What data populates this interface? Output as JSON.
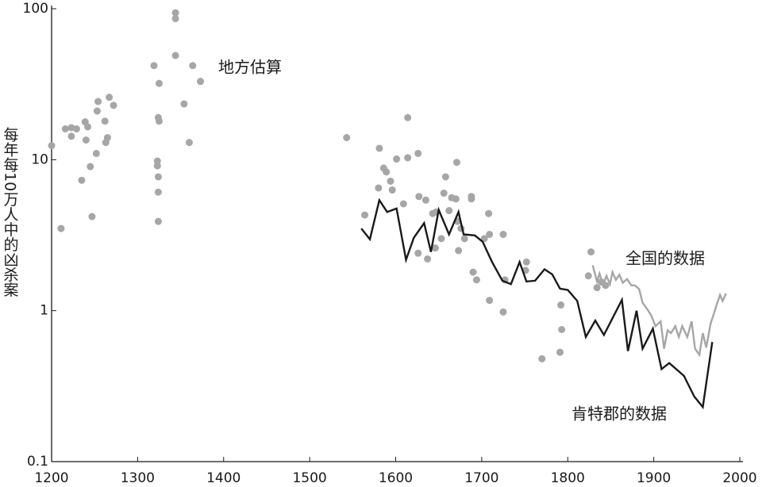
{
  "chart_data": {
    "type": "line",
    "y_label": "每年每10万人中的凶杀案",
    "xlim": [
      1200,
      2000
    ],
    "xticks": [
      1200,
      1300,
      1400,
      1500,
      1600,
      1700,
      1800,
      1900,
      2000
    ],
    "ylim": [
      0.1,
      100
    ],
    "yticks": [
      0.1,
      1,
      10,
      100
    ],
    "yscale": "log",
    "grid": false,
    "series": [
      {
        "name": "地方估算",
        "mode": "markers",
        "color": "#a6a6a6",
        "x": [
          1200,
          1211,
          1216,
          1223,
          1229,
          1223,
          1235,
          1239,
          1240,
          1242,
          1245,
          1247,
          1253,
          1254,
          1252,
          1262,
          1263,
          1265,
          1267,
          1272,
          1319,
          1325,
          1325,
          1324,
          1323,
          1323,
          1324,
          1324,
          1324,
          1344,
          1344,
          1344,
          1354,
          1360,
          1364,
          1373,
          1543,
          1564,
          1581,
          1586,
          1580,
          1589,
          1594,
          1596,
          1601,
          1609,
          1614,
          1614,
          1626,
          1627,
          1635,
          1626,
          1637,
          1643,
          1647,
          1646,
          1653,
          1656,
          1658,
          1662,
          1665,
          1670,
          1671,
          1672,
          1673,
          1676,
          1680,
          1688,
          1688,
          1690,
          1694,
          1703,
          1708,
          1709,
          1709,
          1725,
          1727,
          1725,
          1752,
          1751,
          1770,
          1792,
          1793,
          1791,
          1827,
          1824,
          1834,
          1839,
          1844
        ],
        "values": [
          12.4,
          3.5,
          16,
          16.3,
          16,
          14.3,
          7.3,
          17.8,
          13.5,
          16.5,
          9,
          4.2,
          21,
          24.3,
          11,
          18,
          13,
          14,
          25.9,
          22.9,
          42,
          18,
          32,
          19,
          9.8,
          9.1,
          7.7,
          6.1,
          3.9,
          94,
          86,
          49,
          23.4,
          13,
          42,
          33,
          14,
          4.3,
          11.9,
          8.8,
          6.5,
          8.3,
          7.2,
          6.3,
          10.1,
          5.1,
          19,
          10.3,
          11,
          5.7,
          5.4,
          2.4,
          2.2,
          4.4,
          4.5,
          2.6,
          3.0,
          6.0,
          7.7,
          4.6,
          5.6,
          5.5,
          9.6,
          3.9,
          2.5,
          3.5,
          3.0,
          5.5,
          5.7,
          1.8,
          1.6,
          3.0,
          4.4,
          3.2,
          1.17,
          3.2,
          1.6,
          0.98,
          2.1,
          1.85,
          0.48,
          1.09,
          0.75,
          0.53,
          2.45,
          1.7,
          1.42,
          1.55,
          1.47
        ]
      },
      {
        "name": "全国的数据",
        "mode": "line",
        "color": "#a6a6a6",
        "x": [
          1829,
          1834,
          1837,
          1841,
          1845,
          1849,
          1852,
          1856,
          1860,
          1864,
          1869,
          1874,
          1878,
          1883,
          1887,
          1892,
          1897,
          1902,
          1908,
          1912,
          1916,
          1920,
          1925,
          1929,
          1933,
          1939,
          1944,
          1948,
          1953,
          1957,
          1961,
          1966,
          1970,
          1973,
          1977,
          1980,
          1984
        ],
        "values": [
          2.0,
          1.56,
          1.76,
          1.47,
          1.7,
          1.5,
          1.8,
          1.6,
          1.73,
          1.53,
          1.62,
          1.47,
          1.47,
          1.39,
          1.13,
          1.03,
          0.93,
          0.79,
          0.85,
          0.56,
          0.74,
          0.71,
          0.79,
          0.67,
          0.79,
          0.67,
          0.85,
          0.56,
          0.51,
          0.71,
          0.57,
          0.82,
          0.96,
          1.09,
          1.27,
          1.16,
          1.3
        ]
      },
      {
        "name": "肯特郡的数据",
        "mode": "line",
        "color": "#1a1a1a",
        "x": [
          1560,
          1570,
          1581,
          1590,
          1601,
          1612,
          1621,
          1633,
          1641,
          1650,
          1662,
          1673,
          1679,
          1692,
          1701,
          1712,
          1724,
          1734,
          1744,
          1752,
          1762,
          1773,
          1782,
          1791,
          1800,
          1811,
          1821,
          1832,
          1842,
          1863,
          1870,
          1880,
          1887,
          1899,
          1909,
          1918,
          1935,
          1947,
          1957,
          1968
        ],
        "values": [
          3.5,
          2.97,
          5.4,
          4.5,
          4.75,
          2.17,
          3.04,
          3.8,
          2.45,
          4.65,
          3.2,
          4.5,
          3.2,
          3.15,
          2.86,
          2.1,
          1.58,
          1.5,
          2.1,
          1.56,
          1.58,
          1.88,
          1.74,
          1.4,
          1.37,
          1.16,
          0.67,
          0.86,
          0.69,
          1.18,
          0.54,
          1.0,
          0.56,
          0.76,
          0.41,
          0.45,
          0.37,
          0.27,
          0.23,
          0.62
        ]
      }
    ]
  }
}
